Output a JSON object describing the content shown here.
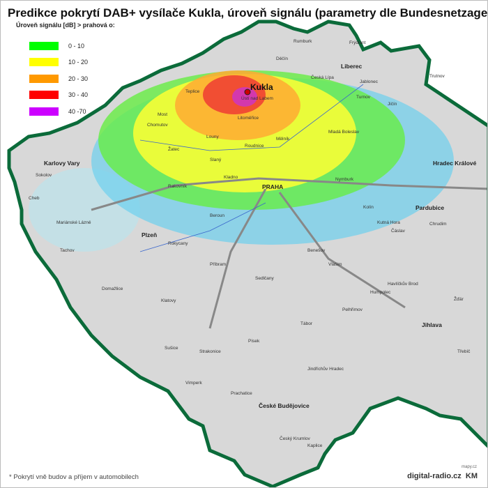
{
  "title": "Predikce pokrytí DAB+ vysílače Kukla, úroveň signálu (parametry dle Bundesnetzagentur.de)",
  "legend": {
    "heading": "Úroveň signálu [dB] > prahová o:",
    "items": [
      {
        "label": "0 - 10",
        "color": "#00ff00"
      },
      {
        "label": "10 - 20",
        "color": "#ffff00"
      },
      {
        "label": "20 - 30",
        "color": "#ff9900"
      },
      {
        "label": "30 - 40",
        "color": "#ff0000"
      },
      {
        "label": "40 -70",
        "color": "#cc00ff"
      }
    ]
  },
  "transmitter": {
    "name": "Kukla",
    "marker_color": "#cc0000"
  },
  "cities_major": [
    "PRAHA",
    "Liberec",
    "Karlovy Vary",
    "Plzeň",
    "Pardubice",
    "Hradec Králové",
    "Jihlava",
    "České Budějovice",
    "Kukla"
  ],
  "cities": [
    "Ústí nad Labem",
    "Teplice",
    "Most",
    "Chomutov",
    "Děčín",
    "Česká Lípa",
    "Mladá Boleslav",
    "Mělník",
    "Kladno",
    "Beroun",
    "Příbram",
    "Tábor",
    "Písek",
    "Kolín",
    "Kutná Hora",
    "Čáslav",
    "Havlíčkův Brod",
    "Klatovy",
    "Strakonice",
    "Jindřichův Hradec",
    "Český Krumlov",
    "Cheb",
    "Sokolov",
    "Rakovník",
    "Louny",
    "Žatec",
    "Litoměřice",
    "Nymburk",
    "Benešov",
    "Sušice",
    "Domažlice",
    "Tachov",
    "Rokycany",
    "Jičín",
    "Turnov",
    "Trutnov",
    "Chrudim",
    "Pelhřimov",
    "Žďár",
    "Třebíč",
    "Prachatice",
    "Vimperk",
    "Kaplice",
    "Jablonec",
    "Frýdlant",
    "Rumburk",
    "Roudnice",
    "Slaný",
    "Vlašim",
    "Sedlčany",
    "Humpolec",
    "Mariánské Lázně"
  ],
  "border_color": "#0b6b3a",
  "footer": {
    "note": "* Pokrytí vně budov a příjem v automobilech",
    "brand": "digital-radio.cz",
    "mapy": "mapy.cz",
    "initials": "KM"
  }
}
